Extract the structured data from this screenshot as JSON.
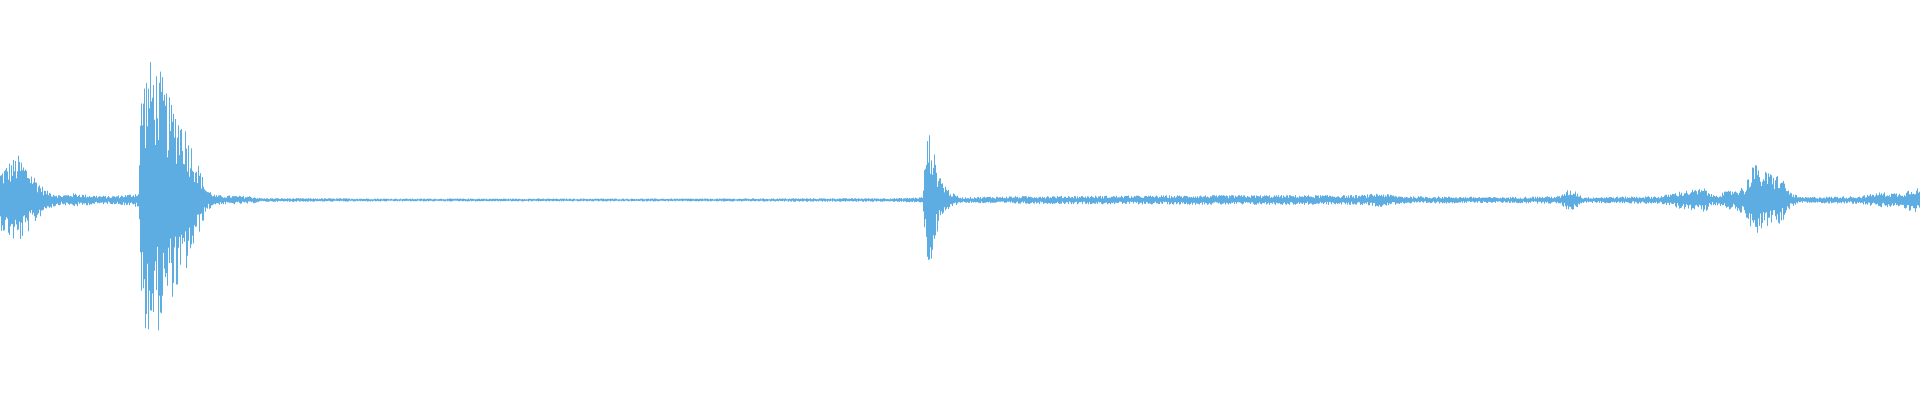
{
  "waveform": {
    "color": "#5dade2",
    "background": "#ffffff",
    "channels": 1
  }
}
